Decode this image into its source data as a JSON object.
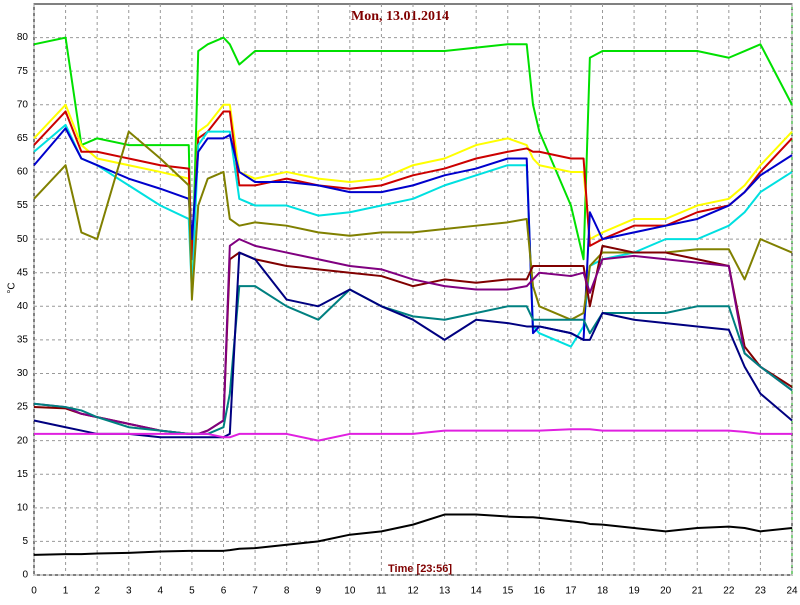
{
  "chart_data": {
    "type": "line",
    "title": "Mon, 13.01.2014",
    "x_label": "Time [23:56]",
    "y_label": "°C",
    "xlim": [
      0,
      24
    ],
    "xticks": [
      0,
      1,
      2,
      3,
      4,
      5,
      6,
      7,
      8,
      9,
      10,
      11,
      12,
      13,
      14,
      15,
      16,
      17,
      18,
      19,
      20,
      21,
      22,
      23,
      24
    ],
    "ylim": [
      0,
      85
    ],
    "yticks": [
      0,
      5,
      10,
      15,
      20,
      25,
      30,
      35,
      40,
      45,
      50,
      55,
      60,
      65,
      70,
      75,
      80
    ],
    "grid": true,
    "x": [
      0,
      1,
      1.5,
      2,
      3,
      4,
      4.9,
      5,
      5.2,
      5.5,
      6,
      6.2,
      6.5,
      7,
      8,
      9,
      10,
      11,
      12,
      13,
      14,
      15,
      15.6,
      15.8,
      16,
      17,
      17.4,
      17.6,
      18,
      19,
      20,
      21,
      22,
      22.5,
      23,
      24
    ],
    "series": [
      {
        "color": "#00e000",
        "values": [
          79,
          80,
          64,
          65,
          64,
          64,
          64,
          43,
          78,
          79,
          80,
          79,
          76,
          78,
          78,
          78,
          78,
          78,
          78,
          78,
          78.5,
          79,
          79,
          70,
          66,
          55,
          47,
          77,
          78,
          78,
          78,
          78,
          77,
          78,
          79,
          70
        ]
      },
      {
        "color": "#ffff00",
        "values": [
          65,
          70,
          64,
          62,
          61,
          60,
          59,
          45,
          66,
          67,
          70,
          70,
          60,
          59,
          60,
          59,
          58.5,
          59,
          61,
          62,
          64,
          65,
          64,
          62,
          61,
          60,
          60,
          50,
          51,
          53,
          53,
          55,
          56,
          58,
          61,
          66
        ]
      },
      {
        "color": "#cc0000",
        "values": [
          64,
          69,
          63,
          63,
          62,
          61,
          60.5,
          47,
          65,
          66,
          69,
          69,
          58,
          58,
          59,
          58,
          57.5,
          58,
          59.5,
          60.5,
          62,
          63,
          63.5,
          63,
          63,
          62,
          62,
          49,
          50,
          52,
          52,
          54,
          55,
          57,
          60,
          65
        ]
      },
      {
        "color": "#00e0e0",
        "values": [
          63,
          67,
          62,
          61,
          58,
          55,
          53,
          42,
          64,
          66,
          66,
          66,
          56,
          55,
          55,
          53.5,
          54,
          55,
          56,
          58,
          59.5,
          61,
          61,
          37,
          36,
          34,
          37,
          46,
          47,
          48,
          50,
          50,
          52,
          54,
          57,
          60
        ]
      },
      {
        "color": "#0000cc",
        "values": [
          61,
          66.5,
          62,
          61,
          59,
          57.5,
          56,
          50,
          63,
          65,
          65,
          65.5,
          60,
          58.5,
          58.5,
          58,
          57,
          57,
          58,
          59.5,
          60.5,
          62,
          62,
          36,
          37,
          36,
          35,
          54,
          50,
          51,
          52,
          53,
          55,
          57,
          59.5,
          62.5
        ]
      },
      {
        "color": "#808000",
        "values": [
          56,
          61,
          51,
          50,
          66,
          62,
          58,
          41,
          55,
          59,
          60,
          53,
          52,
          52.5,
          52,
          51,
          50.5,
          51,
          51,
          51.5,
          52,
          52.5,
          53,
          43,
          40,
          38,
          39,
          46,
          48,
          48,
          48,
          48.5,
          48.5,
          44,
          50,
          48
        ]
      },
      {
        "color": "#800000",
        "values": [
          25,
          24.8,
          24,
          23.5,
          22.5,
          21.5,
          21,
          21,
          21,
          21.5,
          23,
          47,
          48,
          47,
          46,
          45.5,
          45,
          44.5,
          43,
          44,
          43.5,
          44,
          44,
          46,
          46,
          46,
          46,
          40,
          49,
          48,
          48,
          47,
          46,
          34,
          31,
          28
        ]
      },
      {
        "color": "#800080",
        "values": [
          25.5,
          25,
          24,
          23.5,
          22.5,
          21.5,
          21,
          21,
          21,
          21.5,
          23,
          49,
          50,
          49,
          48,
          47,
          46,
          45.5,
          44,
          43,
          42.5,
          42.5,
          43,
          44,
          45,
          44.5,
          45,
          42,
          47,
          47.5,
          47,
          46.5,
          46,
          33,
          31,
          27.5
        ]
      },
      {
        "color": "#008080",
        "values": [
          25.5,
          25,
          24.5,
          23.5,
          22,
          21.5,
          21,
          21,
          21,
          21,
          22,
          27,
          43,
          43,
          40,
          38,
          42.5,
          40,
          38.5,
          38,
          39,
          40,
          40,
          38,
          38,
          38,
          38,
          36,
          39,
          39,
          39,
          40,
          40,
          33,
          31,
          27.5
        ]
      },
      {
        "color": "#000080",
        "values": [
          23,
          22,
          21.5,
          21,
          21,
          20.5,
          20.5,
          20.5,
          20.5,
          20.5,
          20.5,
          21,
          48,
          47,
          41,
          40,
          42.5,
          40,
          38,
          35,
          38,
          37.5,
          37,
          37,
          37,
          36,
          35,
          35,
          39,
          38,
          37.5,
          37,
          36.5,
          31,
          27,
          23
        ]
      },
      {
        "color": "#e020e0",
        "values": [
          21,
          21,
          21,
          21,
          21,
          21,
          21,
          21,
          21,
          21,
          20.5,
          20.5,
          21,
          21,
          21,
          20,
          21,
          21,
          21,
          21.5,
          21.5,
          21.5,
          21.5,
          21.5,
          21.5,
          21.7,
          21.7,
          21.7,
          21.5,
          21.5,
          21.5,
          21.5,
          21.5,
          21.3,
          21,
          21
        ]
      },
      {
        "color": "#000000",
        "values": [
          3,
          3.1,
          3.1,
          3.2,
          3.3,
          3.5,
          3.6,
          3.6,
          3.6,
          3.6,
          3.6,
          3.7,
          3.9,
          4,
          4.5,
          5,
          6,
          6.5,
          7.5,
          9,
          9,
          8.7,
          8.6,
          8.6,
          8.5,
          8,
          7.8,
          7.6,
          7.5,
          7,
          6.5,
          7,
          7.2,
          7,
          6.5,
          7
        ]
      }
    ]
  }
}
